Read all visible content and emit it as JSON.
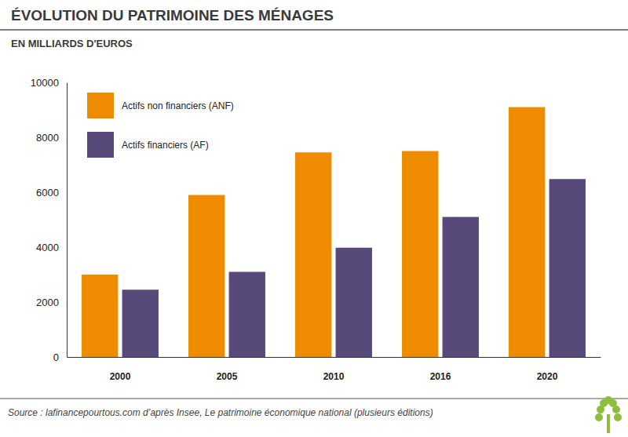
{
  "chart_data": {
    "type": "bar",
    "title": "ÉVOLUTION DU PATRIMOINE DES MÉNAGES",
    "subtitle": "EN MILLIARDS D'EUROS",
    "source": "Source : lafinancepourtous.com d’après Insee, Le patrimoine économique national (plusieurs éditions)",
    "categories": [
      "2000",
      "2005",
      "2010",
      "2016",
      "2020"
    ],
    "series": [
      {
        "name": "Actifs non financiers (ANF)",
        "color": "#ee8b00",
        "values": [
          3000,
          5900,
          7450,
          7500,
          9100
        ]
      },
      {
        "name": "Actifs financiers (AF)",
        "color": "#574a7a",
        "values": [
          2450,
          3100,
          3980,
          5100,
          6480
        ]
      }
    ],
    "ylim": [
      0,
      10000
    ],
    "yticks": [
      0,
      2000,
      4000,
      6000,
      8000,
      10000
    ],
    "grid": false,
    "legend": "upper left"
  }
}
